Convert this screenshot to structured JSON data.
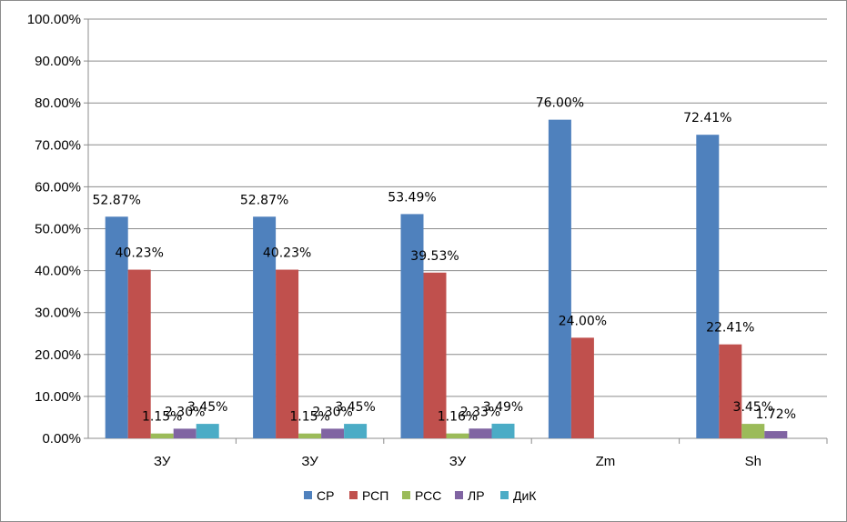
{
  "chart_data": {
    "type": "bar",
    "title": "",
    "xlabel": "",
    "ylabel": "",
    "ylim": [
      0,
      1
    ],
    "grid": true,
    "legend_position": "bottom",
    "categories": [
      "ЗУ",
      "ЗУ",
      "ЗУ",
      "Zm",
      "Sh"
    ],
    "yticks": [
      "0.00%",
      "10.00%",
      "20.00%",
      "30.00%",
      "40.00%",
      "50.00%",
      "60.00%",
      "70.00%",
      "80.00%",
      "90.00%",
      "100.00%"
    ],
    "series": [
      {
        "name": "СР",
        "color": "#4f81bd",
        "values": [
          0.5287,
          0.5287,
          0.5349,
          0.76,
          0.7241
        ],
        "labels": [
          "52.87%",
          "52.87%",
          "53.49%",
          "76.00%",
          "72.41%"
        ]
      },
      {
        "name": "РСП",
        "color": "#c0504d",
        "values": [
          0.4023,
          0.4023,
          0.3953,
          0.24,
          0.2241
        ],
        "labels": [
          "40.23%",
          "40.23%",
          "39.53%",
          "24.00%",
          "22.41%"
        ]
      },
      {
        "name": "РСС",
        "color": "#9bbb59",
        "values": [
          0.0115,
          0.0115,
          0.0116,
          0,
          0.0345
        ],
        "labels": [
          "1.15%",
          "1.15%",
          "1.16%",
          "",
          "3.45%"
        ]
      },
      {
        "name": "ЛР",
        "color": "#8064a2",
        "values": [
          0.023,
          0.023,
          0.0233,
          0,
          0.0172
        ],
        "labels": [
          "2.30%",
          "2.30%",
          "2.33%",
          "",
          "1.72%"
        ]
      },
      {
        "name": "ДиК",
        "color": "#4bacc6",
        "values": [
          0.0345,
          0.0345,
          0.0349,
          0,
          0
        ],
        "labels": [
          "3.45%",
          "3.45%",
          "3.49%",
          "",
          ""
        ]
      }
    ]
  }
}
